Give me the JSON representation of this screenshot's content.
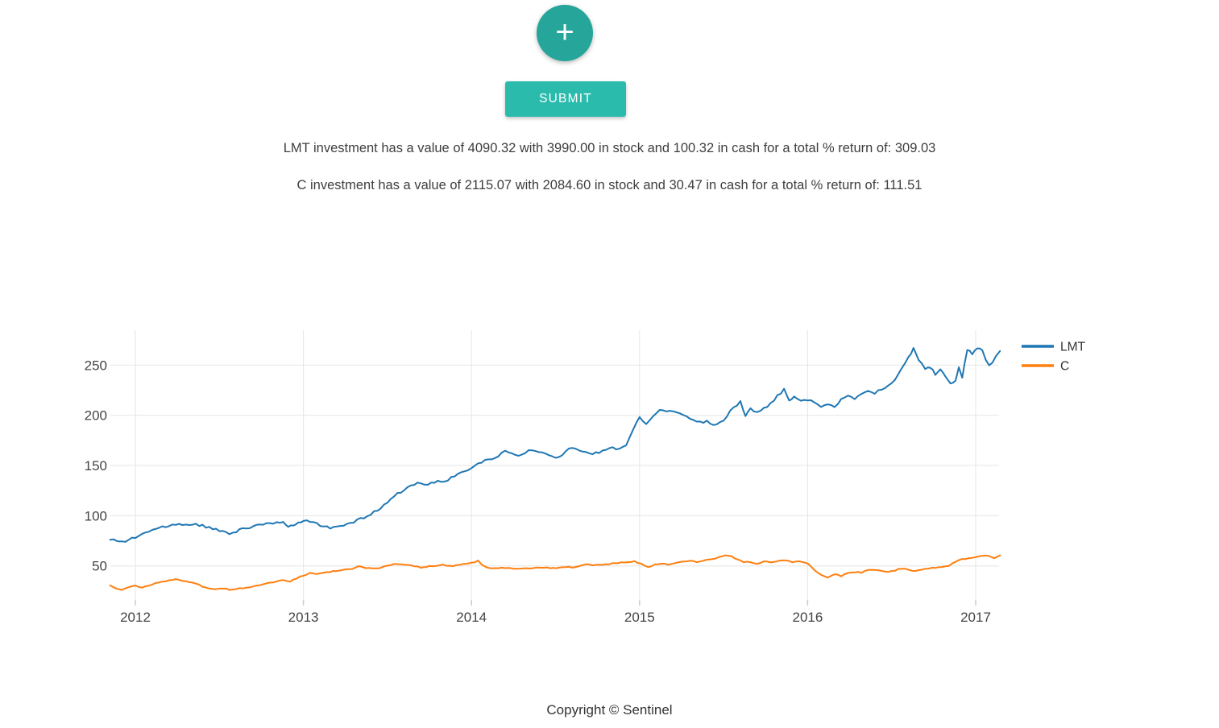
{
  "ui_colors": {
    "fab_teal": "#26a69a",
    "submit_teal": "#2bbbad",
    "text_dark": "#3e3e3e",
    "tick_label": "#444444",
    "legend_label": "#333333",
    "gridline": "#e6e6e6",
    "tick_mark": "#cccccc"
  },
  "add_button": {
    "icon": "plus",
    "glyph": "+"
  },
  "submit_button": {
    "label": "SUBMIT"
  },
  "summary_lines": [
    "LMT investment has a value of 4090.32 with 3990.00 in stock and 100.32 in cash for a total % return of: 309.03",
    "C investment has a value of 2115.07 with 2084.60 in stock and 30.47 in cash for a total % return of: 111.51"
  ],
  "footer": {
    "text": "Copyright © Sentinel"
  },
  "chart_data": {
    "type": "line",
    "title": "",
    "xlabel": "",
    "ylabel": "",
    "x_ticks": [
      2012,
      2013,
      2014,
      2015,
      2016,
      2017
    ],
    "y_ticks": [
      50,
      100,
      150,
      200,
      250
    ],
    "xlim": [
      2011.85,
      2017.15
    ],
    "ylim": [
      16,
      285
    ],
    "grid": true,
    "legend_position": "outside-right-top",
    "legend": [
      "LMT",
      "C"
    ],
    "series": [
      {
        "name": "LMT",
        "color": "#1f77b4",
        "points": [
          [
            2011.85,
            76
          ],
          [
            2011.89,
            74.5
          ],
          [
            2011.92,
            74
          ],
          [
            2011.96,
            76
          ],
          [
            2012.0,
            79
          ],
          [
            2012.04,
            82
          ],
          [
            2012.08,
            84
          ],
          [
            2012.12,
            86.5
          ],
          [
            2012.16,
            88.5
          ],
          [
            2012.2,
            90
          ],
          [
            2012.24,
            90.5
          ],
          [
            2012.28,
            91
          ],
          [
            2012.32,
            90
          ],
          [
            2012.36,
            91
          ],
          [
            2012.4,
            90
          ],
          [
            2012.44,
            88.5
          ],
          [
            2012.48,
            86
          ],
          [
            2012.52,
            83.5
          ],
          [
            2012.56,
            82.5
          ],
          [
            2012.6,
            84.5
          ],
          [
            2012.64,
            86.5
          ],
          [
            2012.68,
            88.5
          ],
          [
            2012.72,
            90.5
          ],
          [
            2012.76,
            92
          ],
          [
            2012.8,
            92.5
          ],
          [
            2012.84,
            93.5
          ],
          [
            2012.88,
            93.5
          ],
          [
            2012.91,
            90
          ],
          [
            2012.94,
            90.5
          ],
          [
            2012.97,
            92
          ],
          [
            2013.0,
            94
          ],
          [
            2013.04,
            94.5
          ],
          [
            2013.08,
            91.5
          ],
          [
            2013.12,
            89
          ],
          [
            2013.16,
            88
          ],
          [
            2013.2,
            88.5
          ],
          [
            2013.24,
            90
          ],
          [
            2013.28,
            92
          ],
          [
            2013.32,
            95
          ],
          [
            2013.36,
            98.5
          ],
          [
            2013.4,
            102
          ],
          [
            2013.44,
            106
          ],
          [
            2013.48,
            111
          ],
          [
            2013.52,
            117
          ],
          [
            2013.56,
            122
          ],
          [
            2013.6,
            126
          ],
          [
            2013.64,
            129
          ],
          [
            2013.68,
            132
          ],
          [
            2013.72,
            131
          ],
          [
            2013.76,
            133
          ],
          [
            2013.8,
            135
          ],
          [
            2013.84,
            134
          ],
          [
            2013.88,
            138
          ],
          [
            2013.92,
            141
          ],
          [
            2013.96,
            143.5
          ],
          [
            2014.0,
            147
          ],
          [
            2014.04,
            152
          ],
          [
            2014.08,
            154.5
          ],
          [
            2014.12,
            156.5
          ],
          [
            2014.16,
            160
          ],
          [
            2014.2,
            164
          ],
          [
            2014.24,
            162
          ],
          [
            2014.28,
            159
          ],
          [
            2014.32,
            163
          ],
          [
            2014.36,
            166
          ],
          [
            2014.4,
            164
          ],
          [
            2014.44,
            163
          ],
          [
            2014.48,
            159.5
          ],
          [
            2014.52,
            158
          ],
          [
            2014.56,
            164
          ],
          [
            2014.6,
            168.5
          ],
          [
            2014.64,
            165
          ],
          [
            2014.68,
            163.5
          ],
          [
            2014.72,
            162
          ],
          [
            2014.76,
            163.5
          ],
          [
            2014.8,
            166
          ],
          [
            2014.84,
            167
          ],
          [
            2014.88,
            166
          ],
          [
            2014.92,
            170
          ],
          [
            2014.96,
            186
          ],
          [
            2015.0,
            197
          ],
          [
            2015.04,
            192
          ],
          [
            2015.08,
            198
          ],
          [
            2015.12,
            206
          ],
          [
            2015.16,
            203
          ],
          [
            2015.2,
            204
          ],
          [
            2015.24,
            201
          ],
          [
            2015.28,
            198
          ],
          [
            2015.32,
            196
          ],
          [
            2015.36,
            193
          ],
          [
            2015.4,
            194
          ],
          [
            2015.44,
            191
          ],
          [
            2015.48,
            192.5
          ],
          [
            2015.52,
            199
          ],
          [
            2015.56,
            208
          ],
          [
            2015.6,
            213
          ],
          [
            2015.63,
            199
          ],
          [
            2015.66,
            207
          ],
          [
            2015.7,
            202
          ],
          [
            2015.74,
            207
          ],
          [
            2015.78,
            212
          ],
          [
            2015.82,
            219
          ],
          [
            2015.86,
            226
          ],
          [
            2015.89,
            215
          ],
          [
            2015.92,
            218
          ],
          [
            2015.96,
            214
          ],
          [
            2016.0,
            216
          ],
          [
            2016.04,
            212
          ],
          [
            2016.08,
            208.5
          ],
          [
            2016.12,
            212
          ],
          [
            2016.16,
            208
          ],
          [
            2016.2,
            216
          ],
          [
            2016.24,
            220
          ],
          [
            2016.28,
            216
          ],
          [
            2016.32,
            220.5
          ],
          [
            2016.36,
            224
          ],
          [
            2016.4,
            222
          ],
          [
            2016.44,
            226
          ],
          [
            2016.48,
            229
          ],
          [
            2016.52,
            236
          ],
          [
            2016.56,
            246
          ],
          [
            2016.6,
            258
          ],
          [
            2016.63,
            266
          ],
          [
            2016.66,
            256
          ],
          [
            2016.7,
            246
          ],
          [
            2016.73,
            248
          ],
          [
            2016.76,
            241
          ],
          [
            2016.79,
            246
          ],
          [
            2016.82,
            238
          ],
          [
            2016.85,
            232
          ],
          [
            2016.88,
            235
          ],
          [
            2016.9,
            249
          ],
          [
            2016.92,
            237
          ],
          [
            2016.95,
            266
          ],
          [
            2016.98,
            262
          ],
          [
            2017.01,
            267
          ],
          [
            2017.04,
            265
          ],
          [
            2017.06,
            254
          ],
          [
            2017.08,
            250
          ],
          [
            2017.1,
            253
          ],
          [
            2017.12,
            258
          ],
          [
            2017.145,
            264
          ]
        ]
      },
      {
        "name": "C",
        "color": "#ff7f0e",
        "points": [
          [
            2011.85,
            30.5
          ],
          [
            2011.89,
            27.5
          ],
          [
            2011.92,
            26
          ],
          [
            2011.96,
            28.5
          ],
          [
            2012.0,
            30
          ],
          [
            2012.04,
            28.5
          ],
          [
            2012.08,
            30.5
          ],
          [
            2012.12,
            32.5
          ],
          [
            2012.16,
            34
          ],
          [
            2012.2,
            36
          ],
          [
            2012.24,
            36.5
          ],
          [
            2012.28,
            35.5
          ],
          [
            2012.32,
            34
          ],
          [
            2012.36,
            32.5
          ],
          [
            2012.4,
            29.5
          ],
          [
            2012.44,
            27.5
          ],
          [
            2012.48,
            26.5
          ],
          [
            2012.52,
            27.5
          ],
          [
            2012.56,
            26.5
          ],
          [
            2012.6,
            27
          ],
          [
            2012.64,
            28
          ],
          [
            2012.68,
            29
          ],
          [
            2012.72,
            30
          ],
          [
            2012.76,
            31.5
          ],
          [
            2012.8,
            33
          ],
          [
            2012.84,
            34.5
          ],
          [
            2012.88,
            35.5
          ],
          [
            2012.92,
            34.5
          ],
          [
            2012.96,
            37.5
          ],
          [
            2013.0,
            40.5
          ],
          [
            2013.04,
            42.5
          ],
          [
            2013.08,
            42
          ],
          [
            2013.12,
            43.5
          ],
          [
            2013.16,
            44
          ],
          [
            2013.21,
            45.5
          ],
          [
            2013.25,
            46.5
          ],
          [
            2013.29,
            47
          ],
          [
            2013.33,
            49.5
          ],
          [
            2013.37,
            48
          ],
          [
            2013.41,
            47
          ],
          [
            2013.45,
            47.5
          ],
          [
            2013.5,
            50
          ],
          [
            2013.54,
            51.5
          ],
          [
            2013.58,
            52
          ],
          [
            2013.62,
            51
          ],
          [
            2013.66,
            50
          ],
          [
            2013.7,
            48.5
          ],
          [
            2013.75,
            49.5
          ],
          [
            2013.79,
            50
          ],
          [
            2013.83,
            51
          ],
          [
            2013.87,
            50
          ],
          [
            2013.91,
            50.5
          ],
          [
            2013.95,
            52
          ],
          [
            2014.0,
            53
          ],
          [
            2014.04,
            55
          ],
          [
            2014.07,
            50
          ],
          [
            2014.1,
            48.5
          ],
          [
            2014.14,
            47.5
          ],
          [
            2014.18,
            48.5
          ],
          [
            2014.22,
            48
          ],
          [
            2014.27,
            47
          ],
          [
            2014.31,
            48
          ],
          [
            2014.35,
            47.5
          ],
          [
            2014.39,
            48
          ],
          [
            2014.43,
            48.5
          ],
          [
            2014.47,
            47.5
          ],
          [
            2014.52,
            48
          ],
          [
            2014.56,
            49
          ],
          [
            2014.6,
            48.5
          ],
          [
            2014.64,
            50
          ],
          [
            2014.68,
            51.5
          ],
          [
            2014.72,
            50.5
          ],
          [
            2014.76,
            51
          ],
          [
            2014.8,
            51.5
          ],
          [
            2014.85,
            52.5
          ],
          [
            2014.89,
            53.5
          ],
          [
            2014.93,
            54
          ],
          [
            2014.97,
            54.5
          ],
          [
            2015.01,
            52
          ],
          [
            2015.05,
            49
          ],
          [
            2015.09,
            51
          ],
          [
            2015.13,
            52.5
          ],
          [
            2015.17,
            51.5
          ],
          [
            2015.21,
            53
          ],
          [
            2015.26,
            54
          ],
          [
            2015.3,
            55
          ],
          [
            2015.34,
            54
          ],
          [
            2015.39,
            55.5
          ],
          [
            2015.43,
            56.5
          ],
          [
            2015.47,
            58.5
          ],
          [
            2015.51,
            60.5
          ],
          [
            2015.55,
            59
          ],
          [
            2015.58,
            57
          ],
          [
            2015.62,
            54
          ],
          [
            2015.66,
            53.5
          ],
          [
            2015.7,
            52
          ],
          [
            2015.74,
            54.5
          ],
          [
            2015.78,
            53.5
          ],
          [
            2015.83,
            55
          ],
          [
            2015.87,
            55.5
          ],
          [
            2015.91,
            53.5
          ],
          [
            2015.95,
            54.5
          ],
          [
            2016.0,
            52
          ],
          [
            2016.04,
            46
          ],
          [
            2016.08,
            41
          ],
          [
            2016.12,
            38.5
          ],
          [
            2016.16,
            42
          ],
          [
            2016.2,
            40
          ],
          [
            2016.24,
            43
          ],
          [
            2016.28,
            44
          ],
          [
            2016.32,
            43.5
          ],
          [
            2016.36,
            45.5
          ],
          [
            2016.4,
            46.5
          ],
          [
            2016.44,
            45
          ],
          [
            2016.48,
            44
          ],
          [
            2016.52,
            45.5
          ],
          [
            2016.56,
            47.5
          ],
          [
            2016.6,
            46
          ],
          [
            2016.64,
            44.5
          ],
          [
            2016.68,
            46
          ],
          [
            2016.72,
            47.5
          ],
          [
            2016.76,
            48
          ],
          [
            2016.8,
            48.5
          ],
          [
            2016.84,
            50
          ],
          [
            2016.88,
            54
          ],
          [
            2016.92,
            56.5
          ],
          [
            2016.96,
            57.5
          ],
          [
            2017.0,
            59
          ],
          [
            2017.04,
            60.5
          ],
          [
            2017.08,
            59.5
          ],
          [
            2017.11,
            58
          ],
          [
            2017.145,
            60.5
          ]
        ]
      }
    ]
  }
}
